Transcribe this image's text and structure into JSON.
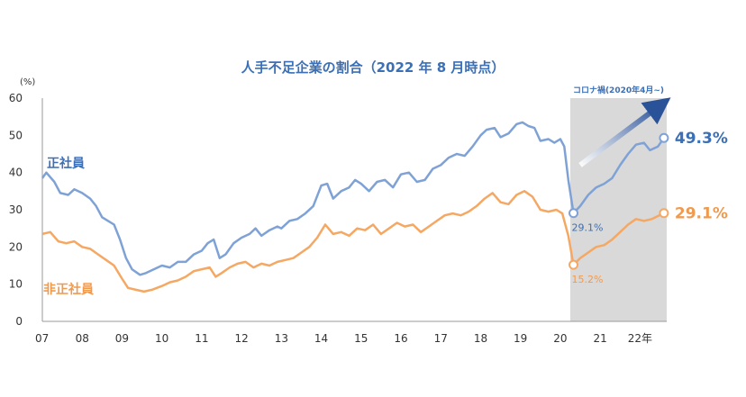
{
  "chart_data": {
    "type": "line",
    "title": "人手不足企業の割合（2022 年 8 月時点）",
    "y_unit": "(%)",
    "ylim": [
      0,
      60
    ],
    "y_ticks": [
      "0",
      "10",
      "20",
      "30",
      "40",
      "50",
      "60"
    ],
    "x_ticks": [
      "07",
      "08",
      "09",
      "10",
      "11",
      "12",
      "13",
      "14",
      "15",
      "16",
      "17",
      "18",
      "19",
      "20",
      "21",
      "22年"
    ],
    "x_range": [
      2007.0,
      2022.67
    ],
    "grid": false,
    "covid_band": {
      "label": "コロナ禍(2020年4月~)",
      "start": 2020.25,
      "end": 2022.67
    },
    "series": [
      {
        "name": "正社員",
        "color": "#3b6fb6",
        "points": [
          [
            2007.0,
            38.5
          ],
          [
            2007.1,
            40.0
          ],
          [
            2007.3,
            37.5
          ],
          [
            2007.45,
            34.5
          ],
          [
            2007.65,
            34.0
          ],
          [
            2007.8,
            35.5
          ],
          [
            2008.0,
            34.5
          ],
          [
            2008.2,
            33.0
          ],
          [
            2008.35,
            31.0
          ],
          [
            2008.5,
            28.0
          ],
          [
            2008.65,
            27.0
          ],
          [
            2008.8,
            26.0
          ],
          [
            2008.95,
            22.0
          ],
          [
            2009.1,
            17.0
          ],
          [
            2009.25,
            14.0
          ],
          [
            2009.45,
            12.5
          ],
          [
            2009.6,
            13.0
          ],
          [
            2009.8,
            14.0
          ],
          [
            2010.0,
            15.0
          ],
          [
            2010.2,
            14.5
          ],
          [
            2010.4,
            16.0
          ],
          [
            2010.6,
            16.0
          ],
          [
            2010.8,
            18.0
          ],
          [
            2011.0,
            19.0
          ],
          [
            2011.15,
            21.0
          ],
          [
            2011.3,
            22.0
          ],
          [
            2011.45,
            17.0
          ],
          [
            2011.6,
            18.0
          ],
          [
            2011.8,
            21.0
          ],
          [
            2012.0,
            22.5
          ],
          [
            2012.2,
            23.5
          ],
          [
            2012.35,
            25.0
          ],
          [
            2012.5,
            23.0
          ],
          [
            2012.7,
            24.5
          ],
          [
            2012.9,
            25.5
          ],
          [
            2013.0,
            25.0
          ],
          [
            2013.2,
            27.0
          ],
          [
            2013.4,
            27.5
          ],
          [
            2013.6,
            29.0
          ],
          [
            2013.8,
            31.0
          ],
          [
            2014.0,
            36.5
          ],
          [
            2014.15,
            37.0
          ],
          [
            2014.3,
            33.0
          ],
          [
            2014.5,
            35.0
          ],
          [
            2014.7,
            36.0
          ],
          [
            2014.85,
            38.0
          ],
          [
            2015.0,
            37.0
          ],
          [
            2015.2,
            35.0
          ],
          [
            2015.4,
            37.5
          ],
          [
            2015.6,
            38.0
          ],
          [
            2015.8,
            36.0
          ],
          [
            2016.0,
            39.5
          ],
          [
            2016.2,
            40.0
          ],
          [
            2016.4,
            37.5
          ],
          [
            2016.6,
            38.0
          ],
          [
            2016.8,
            41.0
          ],
          [
            2017.0,
            42.0
          ],
          [
            2017.2,
            44.0
          ],
          [
            2017.4,
            45.0
          ],
          [
            2017.6,
            44.5
          ],
          [
            2017.8,
            47.0
          ],
          [
            2018.0,
            50.0
          ],
          [
            2018.15,
            51.5
          ],
          [
            2018.35,
            52.0
          ],
          [
            2018.5,
            49.5
          ],
          [
            2018.7,
            50.5
          ],
          [
            2018.9,
            53.0
          ],
          [
            2019.05,
            53.5
          ],
          [
            2019.2,
            52.5
          ],
          [
            2019.35,
            52.0
          ],
          [
            2019.5,
            48.5
          ],
          [
            2019.7,
            49.0
          ],
          [
            2019.85,
            48.0
          ],
          [
            2020.0,
            49.0
          ],
          [
            2020.1,
            47.0
          ],
          [
            2020.2,
            38.0
          ],
          [
            2020.33,
            29.1
          ],
          [
            2020.5,
            31.0
          ],
          [
            2020.7,
            34.0
          ],
          [
            2020.9,
            36.0
          ],
          [
            2021.1,
            37.0
          ],
          [
            2021.3,
            38.5
          ],
          [
            2021.5,
            42.0
          ],
          [
            2021.7,
            45.0
          ],
          [
            2021.9,
            47.5
          ],
          [
            2022.1,
            48.0
          ],
          [
            2022.25,
            46.0
          ],
          [
            2022.45,
            47.0
          ],
          [
            2022.6,
            49.3
          ]
        ]
      },
      {
        "name": "非正社員",
        "color": "#f09a4e",
        "points": [
          [
            2007.0,
            23.5
          ],
          [
            2007.2,
            24.0
          ],
          [
            2007.4,
            21.5
          ],
          [
            2007.6,
            21.0
          ],
          [
            2007.8,
            21.5
          ],
          [
            2008.0,
            20.0
          ],
          [
            2008.2,
            19.5
          ],
          [
            2008.4,
            18.0
          ],
          [
            2008.6,
            16.5
          ],
          [
            2008.8,
            15.0
          ],
          [
            2009.0,
            11.5
          ],
          [
            2009.15,
            9.0
          ],
          [
            2009.35,
            8.5
          ],
          [
            2009.55,
            8.0
          ],
          [
            2009.75,
            8.5
          ],
          [
            2010.0,
            9.5
          ],
          [
            2010.2,
            10.5
          ],
          [
            2010.4,
            11.0
          ],
          [
            2010.6,
            12.0
          ],
          [
            2010.8,
            13.5
          ],
          [
            2011.0,
            14.0
          ],
          [
            2011.2,
            14.5
          ],
          [
            2011.35,
            12.0
          ],
          [
            2011.5,
            13.0
          ],
          [
            2011.7,
            14.5
          ],
          [
            2011.9,
            15.5
          ],
          [
            2012.1,
            16.0
          ],
          [
            2012.3,
            14.5
          ],
          [
            2012.5,
            15.5
          ],
          [
            2012.7,
            15.0
          ],
          [
            2012.9,
            16.0
          ],
          [
            2013.1,
            16.5
          ],
          [
            2013.3,
            17.0
          ],
          [
            2013.5,
            18.5
          ],
          [
            2013.7,
            20.0
          ],
          [
            2013.9,
            22.5
          ],
          [
            2014.1,
            26.0
          ],
          [
            2014.3,
            23.5
          ],
          [
            2014.5,
            24.0
          ],
          [
            2014.7,
            23.0
          ],
          [
            2014.9,
            25.0
          ],
          [
            2015.1,
            24.5
          ],
          [
            2015.3,
            26.0
          ],
          [
            2015.5,
            23.5
          ],
          [
            2015.7,
            25.0
          ],
          [
            2015.9,
            26.5
          ],
          [
            2016.1,
            25.5
          ],
          [
            2016.3,
            26.0
          ],
          [
            2016.5,
            24.0
          ],
          [
            2016.7,
            25.5
          ],
          [
            2016.9,
            27.0
          ],
          [
            2017.1,
            28.5
          ],
          [
            2017.3,
            29.0
          ],
          [
            2017.5,
            28.5
          ],
          [
            2017.7,
            29.5
          ],
          [
            2017.9,
            31.0
          ],
          [
            2018.1,
            33.0
          ],
          [
            2018.3,
            34.5
          ],
          [
            2018.5,
            32.0
          ],
          [
            2018.7,
            31.5
          ],
          [
            2018.9,
            34.0
          ],
          [
            2019.1,
            35.0
          ],
          [
            2019.3,
            33.5
          ],
          [
            2019.5,
            30.0
          ],
          [
            2019.7,
            29.5
          ],
          [
            2019.9,
            30.0
          ],
          [
            2020.05,
            29.0
          ],
          [
            2020.2,
            23.0
          ],
          [
            2020.33,
            15.2
          ],
          [
            2020.5,
            17.0
          ],
          [
            2020.7,
            18.5
          ],
          [
            2020.9,
            20.0
          ],
          [
            2021.1,
            20.5
          ],
          [
            2021.3,
            22.0
          ],
          [
            2021.5,
            24.0
          ],
          [
            2021.7,
            26.0
          ],
          [
            2021.9,
            27.5
          ],
          [
            2022.1,
            27.0
          ],
          [
            2022.3,
            27.5
          ],
          [
            2022.6,
            29.1
          ]
        ]
      }
    ],
    "annotations": {
      "regular_label": "正社員",
      "nonregular_label": "非正社員",
      "regular_end": "49.3%",
      "nonregular_end": "29.1%",
      "regular_low": "29.1%",
      "nonregular_low": "15.2%"
    }
  }
}
